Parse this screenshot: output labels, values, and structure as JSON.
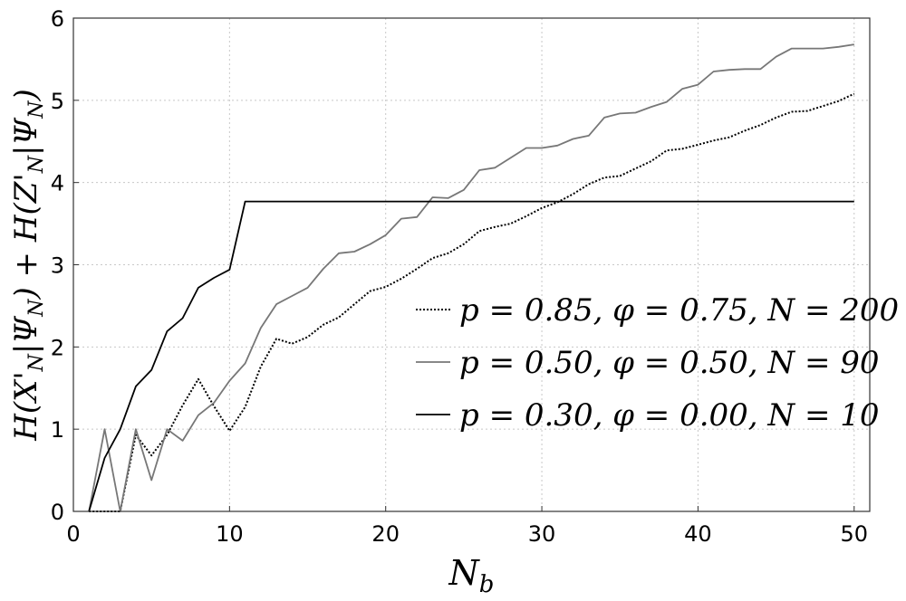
{
  "chart_data": {
    "type": "line",
    "xlabel": "N_b",
    "ylabel": "H(X'_N|Ψ_N) + H(Z'_N|Ψ_N)",
    "xlim": [
      0,
      51
    ],
    "ylim": [
      0,
      6
    ],
    "xticks": [
      0,
      10,
      20,
      30,
      40,
      50
    ],
    "yticks": [
      0,
      1,
      2,
      3,
      4,
      5,
      6
    ],
    "grid": true,
    "legend_position": "center-right",
    "series": [
      {
        "name": "p = 0.85, φ = 0.75, N = 200",
        "style": "dotted",
        "color": "#000000",
        "x": [
          1,
          2,
          3,
          4,
          5,
          6,
          7,
          8,
          9,
          10,
          11,
          12,
          13,
          14,
          15,
          16,
          17,
          18,
          19,
          20,
          21,
          22,
          23,
          24,
          25,
          26,
          27,
          28,
          29,
          30,
          31,
          32,
          33,
          34,
          35,
          36,
          37,
          38,
          39,
          40,
          41,
          42,
          43,
          44,
          45,
          46,
          47,
          48,
          49,
          50
        ],
        "y": [
          0.0,
          0.0,
          0.0,
          0.93,
          0.68,
          0.93,
          1.29,
          1.61,
          1.28,
          0.98,
          1.27,
          1.76,
          2.1,
          2.04,
          2.12,
          2.27,
          2.36,
          2.52,
          2.68,
          2.73,
          2.83,
          2.95,
          3.08,
          3.14,
          3.25,
          3.41,
          3.46,
          3.5,
          3.59,
          3.69,
          3.76,
          3.86,
          3.98,
          4.06,
          4.08,
          4.17,
          4.26,
          4.39,
          4.41,
          4.46,
          4.51,
          4.55,
          4.63,
          4.7,
          4.79,
          4.86,
          4.87,
          4.93,
          4.99,
          5.08
        ]
      },
      {
        "name": "p = 0.50, φ = 0.50, N = 90",
        "style": "solid",
        "color": "#777777",
        "x": [
          1,
          2,
          3,
          4,
          5,
          6,
          7,
          8,
          9,
          10,
          11,
          12,
          13,
          14,
          15,
          16,
          17,
          18,
          19,
          20,
          21,
          22,
          23,
          24,
          25,
          26,
          27,
          28,
          29,
          30,
          31,
          32,
          33,
          34,
          35,
          36,
          37,
          38,
          39,
          40,
          41,
          42,
          43,
          44,
          45,
          46,
          47,
          48,
          49,
          50
        ],
        "y": [
          0.0,
          1.0,
          0.0,
          1.0,
          0.38,
          1.0,
          0.86,
          1.17,
          1.32,
          1.59,
          1.8,
          2.23,
          2.52,
          2.62,
          2.72,
          2.95,
          3.14,
          3.16,
          3.25,
          3.36,
          3.56,
          3.58,
          3.82,
          3.81,
          3.91,
          4.15,
          4.18,
          4.3,
          4.42,
          4.42,
          4.45,
          4.53,
          4.57,
          4.79,
          4.84,
          4.85,
          4.92,
          4.98,
          5.14,
          5.19,
          5.35,
          5.37,
          5.38,
          5.38,
          5.53,
          5.63,
          5.63,
          5.63,
          5.65,
          5.68
        ]
      },
      {
        "name": "p = 0.30, φ = 0.00, N = 10",
        "style": "solid",
        "color": "#000000",
        "x": [
          1,
          2,
          3,
          4,
          5,
          6,
          7,
          8,
          9,
          10,
          11,
          12,
          15,
          20,
          25,
          30,
          35,
          40,
          45,
          50
        ],
        "y": [
          0.0,
          0.65,
          1.0,
          1.52,
          1.72,
          2.19,
          2.35,
          2.72,
          2.84,
          2.94,
          3.77,
          3.77,
          3.77,
          3.77,
          3.77,
          3.77,
          3.77,
          3.77,
          3.77,
          3.77
        ]
      }
    ]
  }
}
